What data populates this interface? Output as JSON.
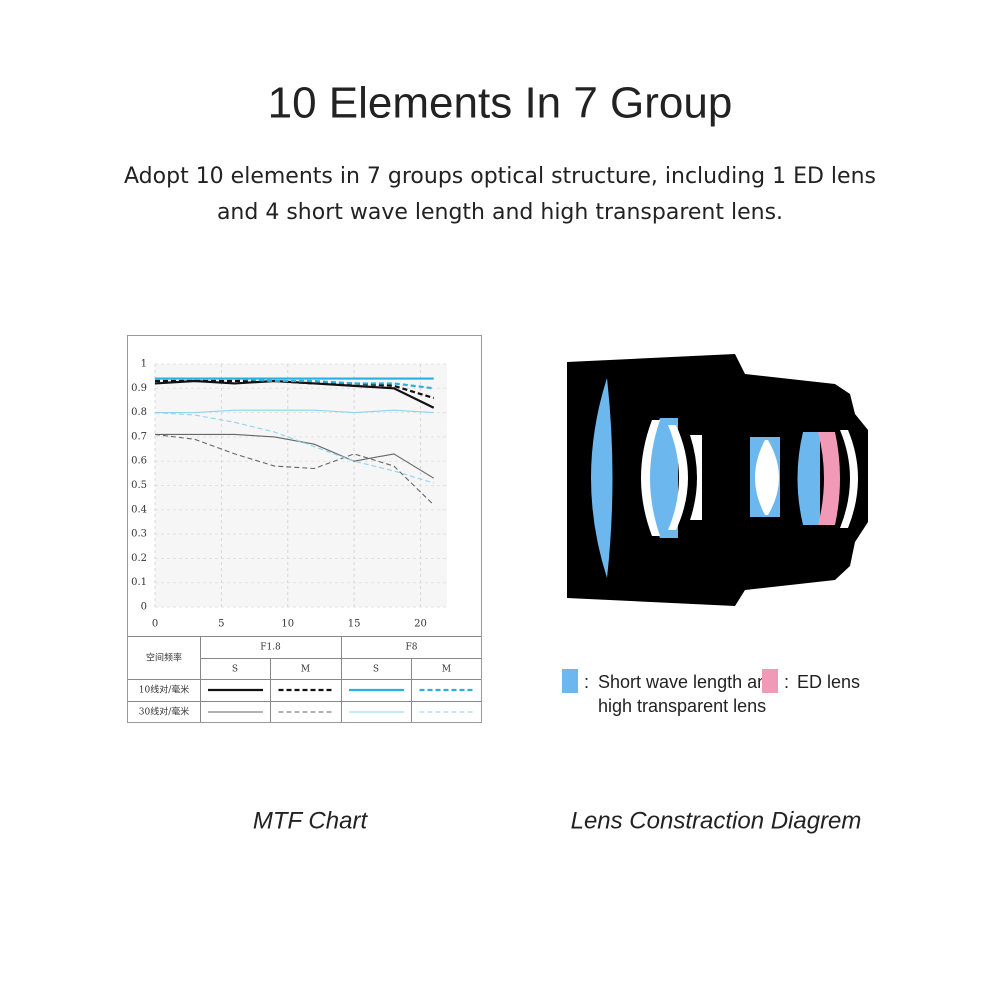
{
  "header": {
    "title": "10 Elements In 7 Group",
    "description": [
      "Adopt 10 elements in 7 groups optical structure, including 1 ED lens",
      "and 4 short wave length and high transparent lens."
    ]
  },
  "chart_data": {
    "type": "line",
    "x": [
      0,
      3,
      6,
      9,
      12,
      15,
      18,
      21
    ],
    "xlim": [
      0,
      22
    ],
    "xticks": [
      0,
      5,
      10,
      15,
      20
    ],
    "ylim": [
      0,
      1
    ],
    "yticks": [
      0,
      0.1,
      0.2,
      0.3,
      0.4,
      0.5,
      0.6,
      0.7,
      0.8,
      0.9,
      1
    ],
    "grid": true,
    "series": [
      {
        "color": "#111111",
        "dashed": false,
        "bold": true,
        "values": [
          0.92,
          0.93,
          0.92,
          0.93,
          0.92,
          0.91,
          0.9,
          0.82
        ]
      },
      {
        "color": "#111111",
        "dashed": true,
        "bold": true,
        "values": [
          0.93,
          0.93,
          0.93,
          0.93,
          0.92,
          0.92,
          0.91,
          0.86
        ]
      },
      {
        "color": "#29b0e0",
        "dashed": false,
        "bold": true,
        "values": [
          0.94,
          0.94,
          0.94,
          0.94,
          0.94,
          0.94,
          0.94,
          0.94
        ]
      },
      {
        "color": "#29b0e0",
        "dashed": true,
        "bold": true,
        "values": [
          0.94,
          0.94,
          0.94,
          0.93,
          0.93,
          0.92,
          0.92,
          0.9
        ]
      },
      {
        "color": "#666666",
        "dashed": false,
        "bold": false,
        "values": [
          0.71,
          0.71,
          0.71,
          0.7,
          0.67,
          0.6,
          0.63,
          0.53
        ]
      },
      {
        "color": "#666666",
        "dashed": true,
        "bold": false,
        "values": [
          0.71,
          0.69,
          0.63,
          0.58,
          0.57,
          0.63,
          0.58,
          0.42
        ]
      },
      {
        "color": "#8fd3ef",
        "dashed": false,
        "bold": false,
        "values": [
          0.8,
          0.8,
          0.81,
          0.81,
          0.81,
          0.8,
          0.81,
          0.8
        ]
      },
      {
        "color": "#8fd3ef",
        "dashed": true,
        "bold": false,
        "values": [
          0.8,
          0.79,
          0.76,
          0.72,
          0.66,
          0.6,
          0.56,
          0.51
        ]
      }
    ],
    "legend_table": {
      "corner": "空间频率",
      "apertures": [
        "F1.8",
        "F8"
      ],
      "orientations": [
        "S",
        "M",
        "S",
        "M"
      ],
      "frequencies": [
        "10线对/毫米",
        "30线对/毫米"
      ]
    }
  },
  "lens_legend": {
    "short_wave": [
      "Short wave length and",
      "high transparent lens"
    ],
    "ed": "ED lens",
    "separator": ":"
  },
  "captions": {
    "mtf": "MTF Chart",
    "diagram": "Lens Constraction Diagrem"
  }
}
